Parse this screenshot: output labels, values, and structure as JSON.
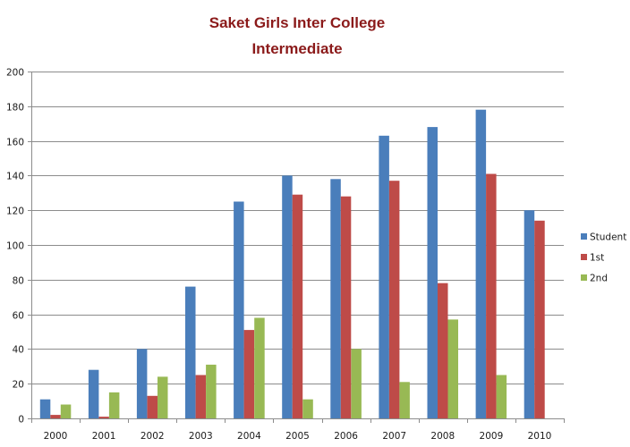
{
  "colors": {
    "student": "#4a7ebb",
    "first": "#be4b48",
    "second": "#98b954",
    "title": "#8b1a1a",
    "grid": "#8c8c8c",
    "axis": "#8c8c8c"
  },
  "chart_data": {
    "type": "bar",
    "title": "Saket Girls Inter College",
    "subtitle": "Intermediate",
    "xlabel": "",
    "ylabel": "",
    "categories": [
      "2000",
      "2001",
      "2002",
      "2003",
      "2004",
      "2005",
      "2006",
      "2007",
      "2008",
      "2009",
      "2010"
    ],
    "ylim": [
      0,
      200
    ],
    "yticks": [
      0,
      20,
      40,
      60,
      80,
      100,
      120,
      140,
      160,
      180,
      200
    ],
    "grid": true,
    "legend_position": "right",
    "series": [
      {
        "name": "Student",
        "color": "#4a7ebb",
        "values": [
          11,
          28,
          40,
          76,
          125,
          140,
          138,
          163,
          168,
          178,
          120
        ]
      },
      {
        "name": "1st",
        "color": "#be4b48",
        "values": [
          2,
          1,
          13,
          25,
          51,
          129,
          128,
          137,
          78,
          141,
          114
        ]
      },
      {
        "name": "2nd",
        "color": "#98b954",
        "values": [
          8,
          15,
          24,
          31,
          58,
          11,
          40,
          21,
          57,
          25,
          0
        ]
      }
    ]
  }
}
